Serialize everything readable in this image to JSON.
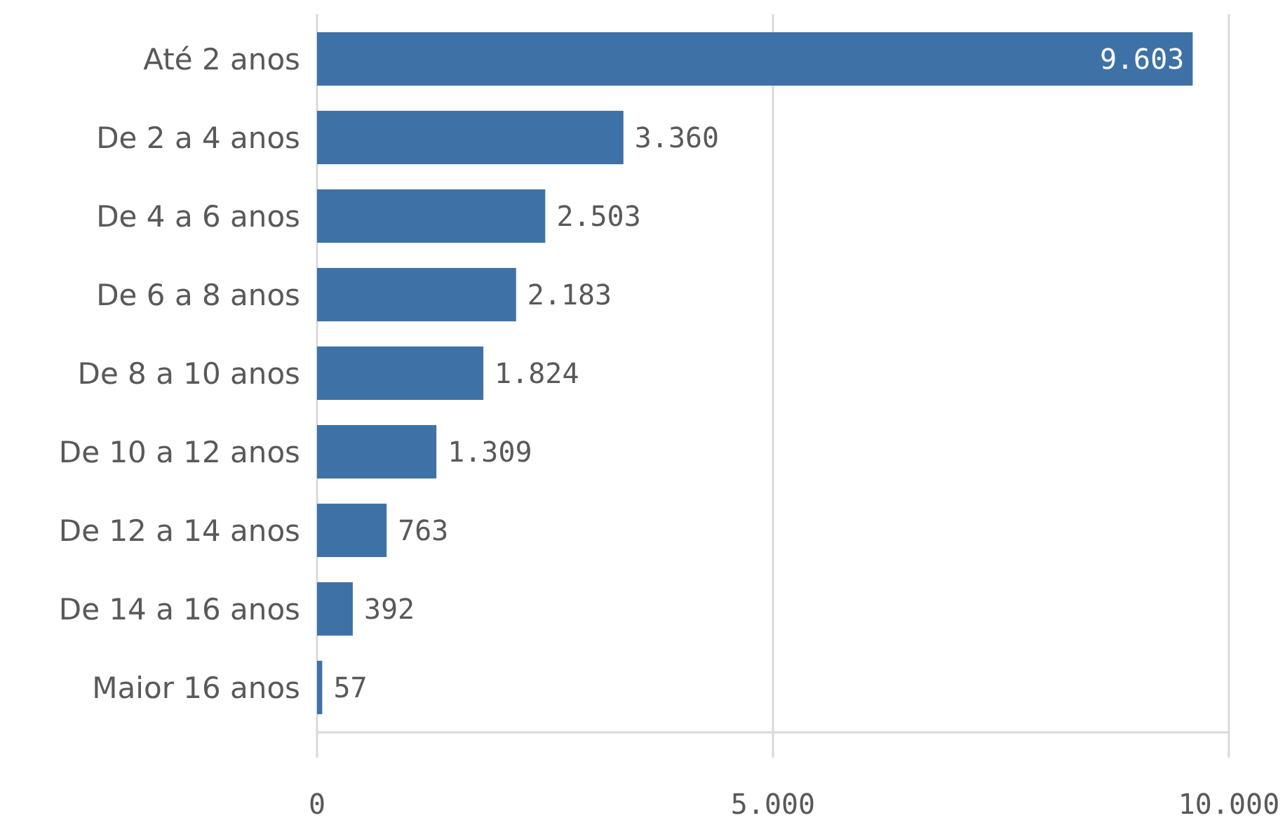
{
  "chart_data": {
    "type": "bar",
    "orientation": "horizontal",
    "categories": [
      "Até 2 anos",
      "De 2 a 4 anos",
      "De 4 a 6 anos",
      "De 6 a 8 anos",
      "De 8 a 10 anos",
      "De 10 a 12 anos",
      "De 12 a 14 anos",
      "De 14 a 16 anos",
      "Maior 16 anos"
    ],
    "values": [
      9603,
      3360,
      2503,
      2183,
      1824,
      1309,
      763,
      392,
      57
    ],
    "value_labels": [
      "9.603",
      "3.360",
      "2.503",
      "2.183",
      "1.824",
      "1.309",
      "763",
      "392",
      "57"
    ],
    "color": "#3e72a6",
    "xlim": [
      0,
      10000
    ],
    "xticks": [
      0,
      {
        "value": 5000,
        "label": "5.000"
      },
      {
        "value": 10000,
        "label": "10.000"
      }
    ],
    "grid": "x"
  }
}
